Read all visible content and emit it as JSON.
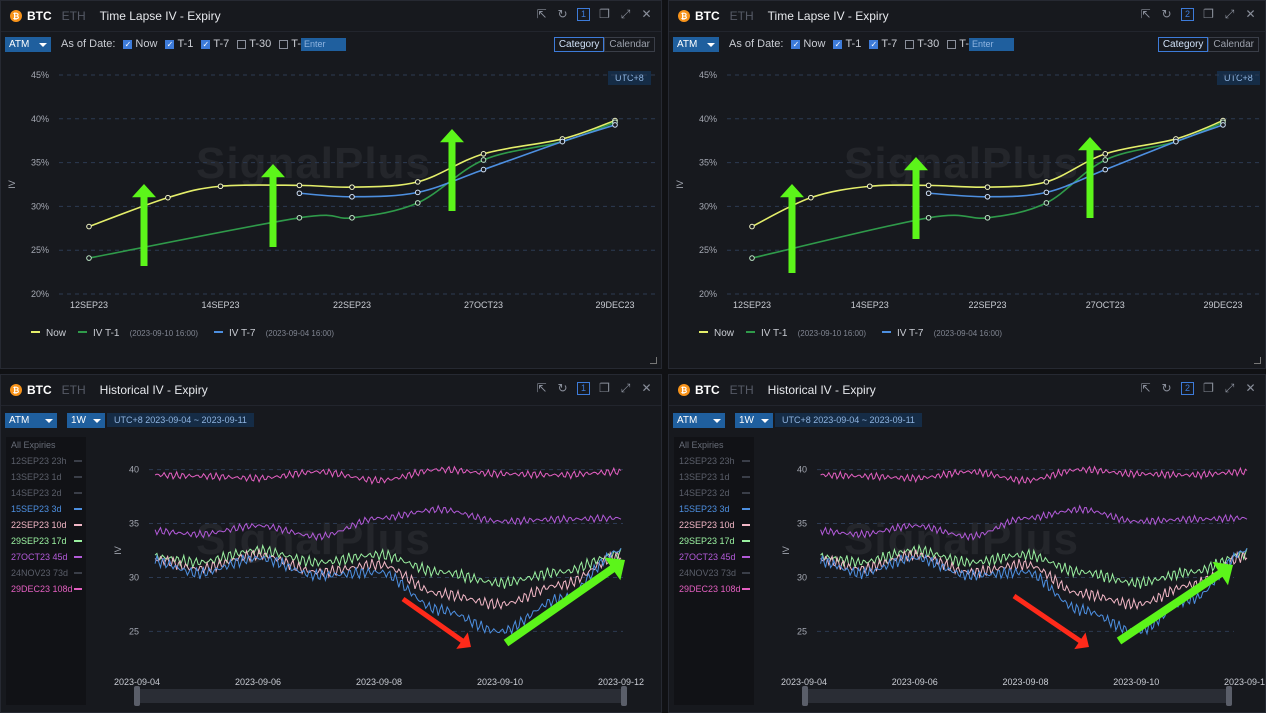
{
  "panels": {
    "top": {
      "coin_btc": "BTC",
      "coin_eth": "ETH",
      "title": "Time Lapse IV - Expiry",
      "atm": "ATM",
      "as_of_label": "As of Date:",
      "checks": [
        {
          "label": "Now",
          "checked": true
        },
        {
          "label": "T-1",
          "checked": true
        },
        {
          "label": "T-7",
          "checked": true
        },
        {
          "label": "T-30",
          "checked": false
        },
        {
          "label": "T-",
          "checked": false
        }
      ],
      "custom_placeholder": "Enter",
      "view_category": "Category",
      "view_calendar": "Calendar",
      "utc": "UTC+8",
      "watermark": "SignalPlus",
      "legend": [
        {
          "name": "Now",
          "suffix": "",
          "color": "#e4ee6a"
        },
        {
          "name": "IV T-1",
          "suffix": "(2023-09-10 16:00)",
          "color": "#2f9a4a"
        },
        {
          "name": "IV T-7",
          "suffix": "(2023-09-04 16:00)",
          "color": "#4d8fe0"
        }
      ],
      "left_num": "1",
      "right_num": "2"
    },
    "bottom": {
      "coin_btc": "BTC",
      "coin_eth": "ETH",
      "title": "Historical IV - Expiry",
      "atm": "ATM",
      "period": "1W",
      "range": "UTC+8 2023-09-04 ~ 2023-09-11",
      "watermark": "SignalPlus",
      "left_num": "1",
      "right_num": "2",
      "expiries_header": "All Expiries",
      "expiries": [
        {
          "label": "12SEP23 23h",
          "active": false,
          "color": "#555a64"
        },
        {
          "label": "13SEP23 1d",
          "active": false,
          "color": "#555a64"
        },
        {
          "label": "14SEP23 2d",
          "active": false,
          "color": "#555a64"
        },
        {
          "label": "15SEP23 3d",
          "active": true,
          "color": "#4d8fe0"
        },
        {
          "label": "22SEP23 10d",
          "active": true,
          "color": "#f2b7c6"
        },
        {
          "label": "29SEP23 17d",
          "active": true,
          "color": "#9af0a0"
        },
        {
          "label": "27OCT23 45d",
          "active": true,
          "color": "#b25ad8"
        },
        {
          "label": "24NOV23 73d",
          "active": false,
          "color": "#555a64"
        },
        {
          "label": "29DEC23 108d",
          "active": true,
          "color": "#e35fc0"
        }
      ]
    }
  },
  "chart_data": [
    {
      "type": "line",
      "panel": "top-left",
      "ylabel": "IV",
      "ylim": [
        20,
        45
      ],
      "yticks": [
        "20%",
        "25%",
        "30%",
        "35%",
        "40%",
        "45%"
      ],
      "x_ticks": [
        "12SEP23",
        "14SEP23",
        "22SEP23",
        "27OCT23",
        "29DEC23"
      ],
      "series": [
        {
          "name": "Now",
          "points": [
            [
              0,
              27.7
            ],
            [
              0.6,
              31.0
            ],
            [
              1.0,
              32.3
            ],
            [
              1.6,
              32.4
            ],
            [
              2.0,
              32.2
            ],
            [
              2.5,
              32.8
            ],
            [
              3.0,
              36.0
            ],
            [
              3.6,
              37.7
            ],
            [
              4.0,
              39.8
            ]
          ]
        },
        {
          "name": "IV T-1",
          "points": [
            [
              0,
              24.1
            ],
            [
              1.6,
              28.7
            ],
            [
              2.0,
              28.7
            ],
            [
              2.5,
              30.4
            ],
            [
              3.0,
              35.3
            ],
            [
              3.6,
              37.4
            ],
            [
              4.0,
              39.6
            ]
          ]
        },
        {
          "name": "IV T-7",
          "points": [
            [
              1.6,
              31.5
            ],
            [
              2.0,
              31.1
            ],
            [
              2.5,
              31.6
            ],
            [
              3.0,
              34.2
            ],
            [
              3.6,
              37.4
            ],
            [
              4.0,
              39.3
            ]
          ]
        }
      ]
    },
    {
      "type": "line",
      "panel": "top-right",
      "ylabel": "IV",
      "ylim": [
        20,
        45
      ],
      "yticks": [
        "20%",
        "25%",
        "30%",
        "35%",
        "40%",
        "45%"
      ],
      "x_ticks": [
        "12SEP23",
        "14SEP23",
        "22SEP23",
        "27OCT23",
        "29DEC23"
      ],
      "series": [
        {
          "name": "Now",
          "points": [
            [
              0,
              27.7
            ],
            [
              0.5,
              31.0
            ],
            [
              1.0,
              32.3
            ],
            [
              1.5,
              32.4
            ],
            [
              2.0,
              32.2
            ],
            [
              2.5,
              32.8
            ],
            [
              3.0,
              36.0
            ],
            [
              3.6,
              37.7
            ],
            [
              4.0,
              39.8
            ]
          ]
        },
        {
          "name": "IV T-1",
          "points": [
            [
              0,
              24.1
            ],
            [
              1.5,
              28.7
            ],
            [
              2.0,
              28.7
            ],
            [
              2.5,
              30.4
            ],
            [
              3.0,
              35.3
            ],
            [
              3.6,
              37.4
            ],
            [
              4.0,
              39.6
            ]
          ]
        },
        {
          "name": "IV T-7",
          "points": [
            [
              1.5,
              31.5
            ],
            [
              2.0,
              31.1
            ],
            [
              2.5,
              31.6
            ],
            [
              3.0,
              34.2
            ],
            [
              3.6,
              37.4
            ],
            [
              4.0,
              39.3
            ]
          ]
        }
      ]
    },
    {
      "type": "line",
      "panel": "bottom",
      "ylabel": "IV",
      "ylim": [
        23,
        42
      ],
      "yticks": [
        "25",
        "30",
        "35",
        "40"
      ],
      "x_ticks": [
        "2023-09-04",
        "2023-09-06",
        "2023-09-08",
        "2023-09-10",
        "2023-09-12"
      ],
      "series": [
        {
          "name": "29DEC23 108d",
          "x": [
            4.3,
            5,
            6,
            7,
            8,
            9,
            10,
            11,
            12
          ],
          "values": [
            39.5,
            39.4,
            39.2,
            39.8,
            39.0,
            40.0,
            39.6,
            39.5,
            39.8
          ]
        },
        {
          "name": "27OCT23 45d",
          "x": [
            4.3,
            5,
            6,
            7,
            8,
            9,
            10,
            11,
            12
          ],
          "values": [
            34.3,
            34.0,
            34.8,
            33.8,
            35.5,
            36.3,
            35.2,
            35.4,
            35.5
          ]
        },
        {
          "name": "29SEP23 17d",
          "x": [
            4.3,
            5,
            6,
            7,
            8,
            9,
            10,
            11,
            12
          ],
          "values": [
            31.9,
            31.4,
            32.5,
            31.4,
            32.1,
            30.5,
            29.5,
            30.5,
            32.2
          ]
        },
        {
          "name": "22SEP23 10d",
          "x": [
            4.3,
            5,
            6,
            7,
            8,
            9,
            10,
            11,
            12
          ],
          "values": [
            31.7,
            30.8,
            32.1,
            30.5,
            31.2,
            28.5,
            27.5,
            29.3,
            32.0
          ]
        },
        {
          "name": "15SEP23 3d",
          "x": [
            4.3,
            5,
            6,
            7,
            8,
            9,
            10,
            11,
            12
          ],
          "values": [
            31.5,
            30.4,
            31.8,
            30.2,
            30.5,
            27.0,
            25.0,
            28.0,
            32.5
          ]
        }
      ]
    }
  ],
  "colors": {
    "now": "#e4ee6a",
    "t1": "#2f9a4a",
    "t7": "#4d8fe0",
    "arrow_up": "#5cf51a",
    "arrow_down": "#ff2a1a",
    "accent": "#3d7bd9"
  }
}
